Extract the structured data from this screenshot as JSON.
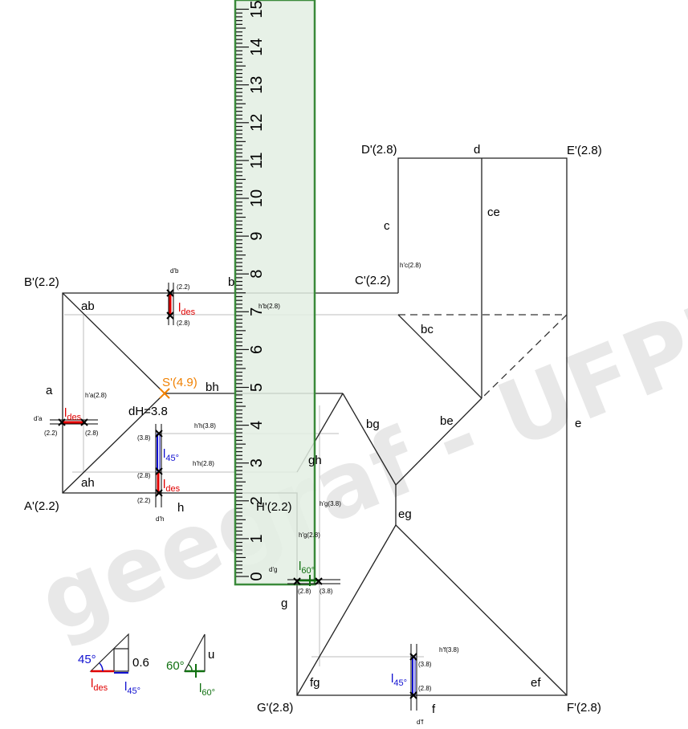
{
  "watermark": "geegraf - UFPR",
  "ruler": {
    "numbers": [
      "0",
      "1",
      "2",
      "3",
      "4",
      "5",
      "6",
      "7",
      "8",
      "9",
      "10",
      "11",
      "12",
      "13",
      "14",
      "15"
    ]
  },
  "vertices": {
    "B": "B'(2.2)",
    "C": "C'(2.2)",
    "D": "D'(2.8)",
    "E": "E'(2.8)",
    "A": "A'(2.2)",
    "H": "H'(2.2)",
    "G": "G'(2.8)",
    "F": "F'(2.8)",
    "S": "S'(4.9)"
  },
  "edges": {
    "a": "a",
    "b": "b",
    "c": "c",
    "d": "d",
    "e": "e",
    "f": "f",
    "g": "g",
    "h": "h",
    "ab": "ab",
    "bh": "bh",
    "ah": "ah",
    "bc": "bc",
    "ce": "ce",
    "be": "be",
    "bg": "bg",
    "gh": "gh",
    "eg": "eg",
    "fg": "fg",
    "ef": "ef"
  },
  "dH": "dH=3.8",
  "small_labels": {
    "db": "d'b",
    "hb_v": "h'b(2.8)",
    "hc": "h'c(2.8)",
    "ha": "h'a(2.8)",
    "da": "d'a",
    "hh38": "h'h(3.8)",
    "hh28": "h'h(2.8)",
    "dh": "d'h",
    "hg38": "h'g(3.8)",
    "hg28": "h'g(2.8)",
    "dg": "d'g",
    "hf": "h'f(3.8)",
    "df": "d'f"
  },
  "values": {
    "v22": "(2.2)",
    "v28": "(2.8)",
    "v38": "(3.8)"
  },
  "lengths": {
    "l_des": "l",
    "des_sub": "des",
    "l45": "l",
    "s45": "45°",
    "l60": "l",
    "s60": "60°"
  },
  "legend": {
    "angle45": "45°",
    "height": "0.6",
    "ldes": "l",
    "ldes_sub": "des",
    "l45": "l",
    "l45_sub": "45°",
    "angle60": "60°",
    "u": "u",
    "l60": "l",
    "l60_sub": "60°"
  },
  "colors": {
    "red": "#e00000",
    "blue": "#1010d0",
    "green": "#107010",
    "orange": "#f08000",
    "ruler_fill": "#e3efe3",
    "ruler_border": "#3a8a3a"
  }
}
